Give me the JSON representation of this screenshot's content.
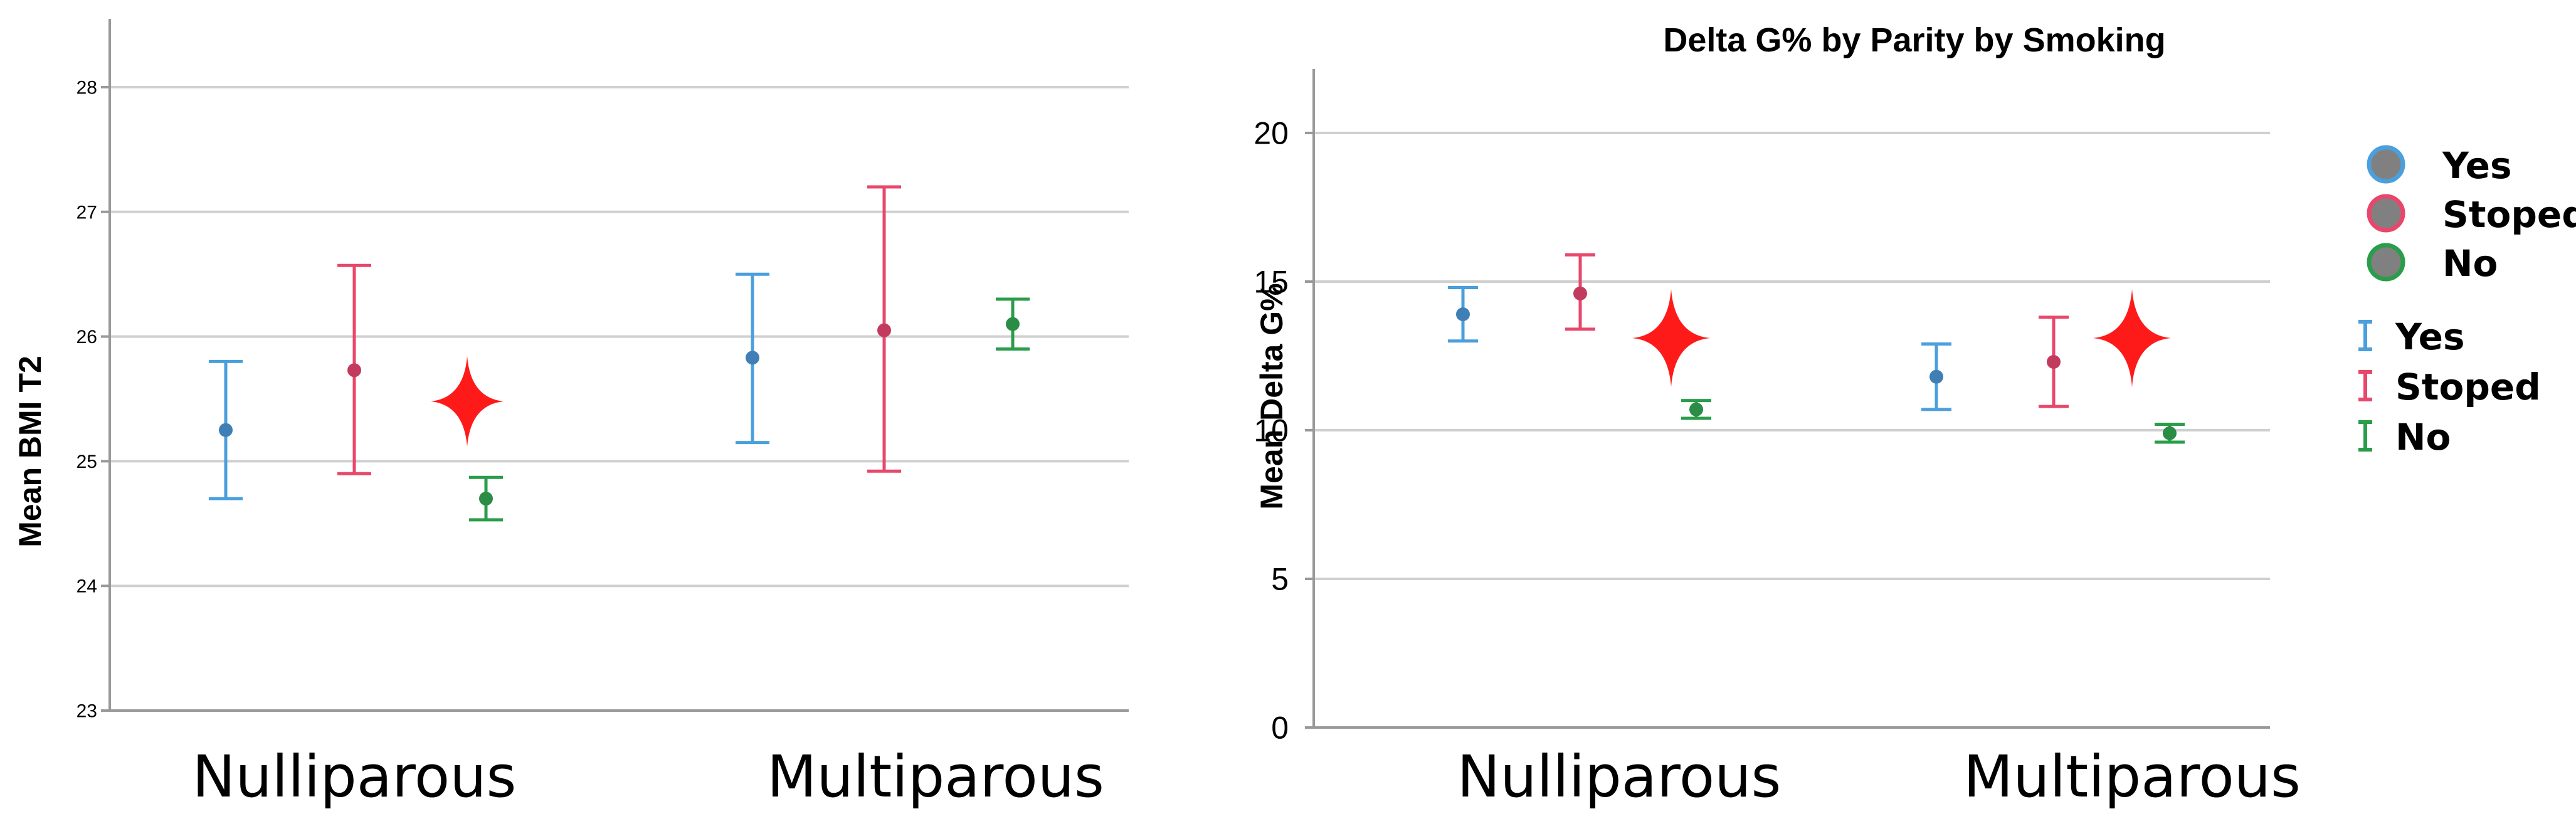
{
  "chart_data": [
    {
      "type": "errorbar",
      "title": "",
      "xlabel": "",
      "ylabel": "Mean BMI T2",
      "categories": [
        "Nulliparous",
        "Multiparous"
      ],
      "ylim": [
        23,
        28.5
      ],
      "yticks": [
        "23",
        "24",
        "25",
        "26",
        "27",
        "28"
      ],
      "series": [
        {
          "name": "Yes",
          "color": "#4a9fdc",
          "dot_color": "#3f7fb5",
          "means": [
            25.25,
            25.83
          ],
          "lower": [
            24.7,
            25.15
          ],
          "upper": [
            25.8,
            26.5
          ]
        },
        {
          "name": "Stoped",
          "color": "#e8476b",
          "dot_color": "#c23b5f",
          "means": [
            25.73,
            26.05
          ],
          "lower": [
            24.9,
            24.92
          ],
          "upper": [
            26.57,
            27.2
          ]
        },
        {
          "name": "No",
          "color": "#2a9d4a",
          "dot_color": "#2a8c45",
          "means": [
            24.7,
            26.1
          ],
          "lower": [
            24.53,
            25.9
          ],
          "upper": [
            24.87,
            26.3
          ]
        }
      ],
      "annotations": [
        {
          "type": "red-star",
          "category": "Nulliparous",
          "y": 25.48
        }
      ]
    },
    {
      "type": "errorbar",
      "title": "Delta G% by Parity by Smoking",
      "xlabel": "",
      "ylabel": "Mean Delta G%",
      "categories": [
        "Nulliparous",
        "Multiparous"
      ],
      "ylim": [
        0,
        22
      ],
      "yticks": [
        "0",
        "5",
        "10",
        "15",
        "20"
      ],
      "series": [
        {
          "name": "Yes",
          "color": "#4a9fdc",
          "dot_color": "#3f7fb5",
          "means": [
            13.9,
            11.8
          ],
          "lower": [
            13.0,
            10.7
          ],
          "upper": [
            14.8,
            12.9
          ]
        },
        {
          "name": "Stoped",
          "color": "#e8476b",
          "dot_color": "#c23b5f",
          "means": [
            14.6,
            12.3
          ],
          "lower": [
            13.4,
            10.8
          ],
          "upper": [
            15.9,
            13.8
          ]
        },
        {
          "name": "No",
          "color": "#2a9d4a",
          "dot_color": "#2a8c45",
          "means": [
            10.7,
            9.9
          ],
          "lower": [
            10.4,
            9.6
          ],
          "upper": [
            11.0,
            10.2
          ]
        }
      ],
      "annotations": [
        {
          "type": "red-star",
          "category": "Nulliparous",
          "y": 13.1
        },
        {
          "type": "red-star",
          "category": "Multiparous",
          "y": 13.1
        }
      ]
    }
  ],
  "legend": {
    "dots": [
      {
        "label": "Yes",
        "color": "#4a9fdc"
      },
      {
        "label": "Stoped",
        "color": "#e8476b"
      },
      {
        "label": "No",
        "color": "#2a9d4a"
      }
    ],
    "bars": [
      {
        "label": "Yes",
        "color": "#4a9fdc"
      },
      {
        "label": "Stoped",
        "color": "#e8476b"
      },
      {
        "label": "No",
        "color": "#2a9d4a"
      }
    ]
  },
  "colors": {
    "star": "#ff1a1a",
    "grid": "#cfcfcf",
    "axis": "#999999"
  }
}
